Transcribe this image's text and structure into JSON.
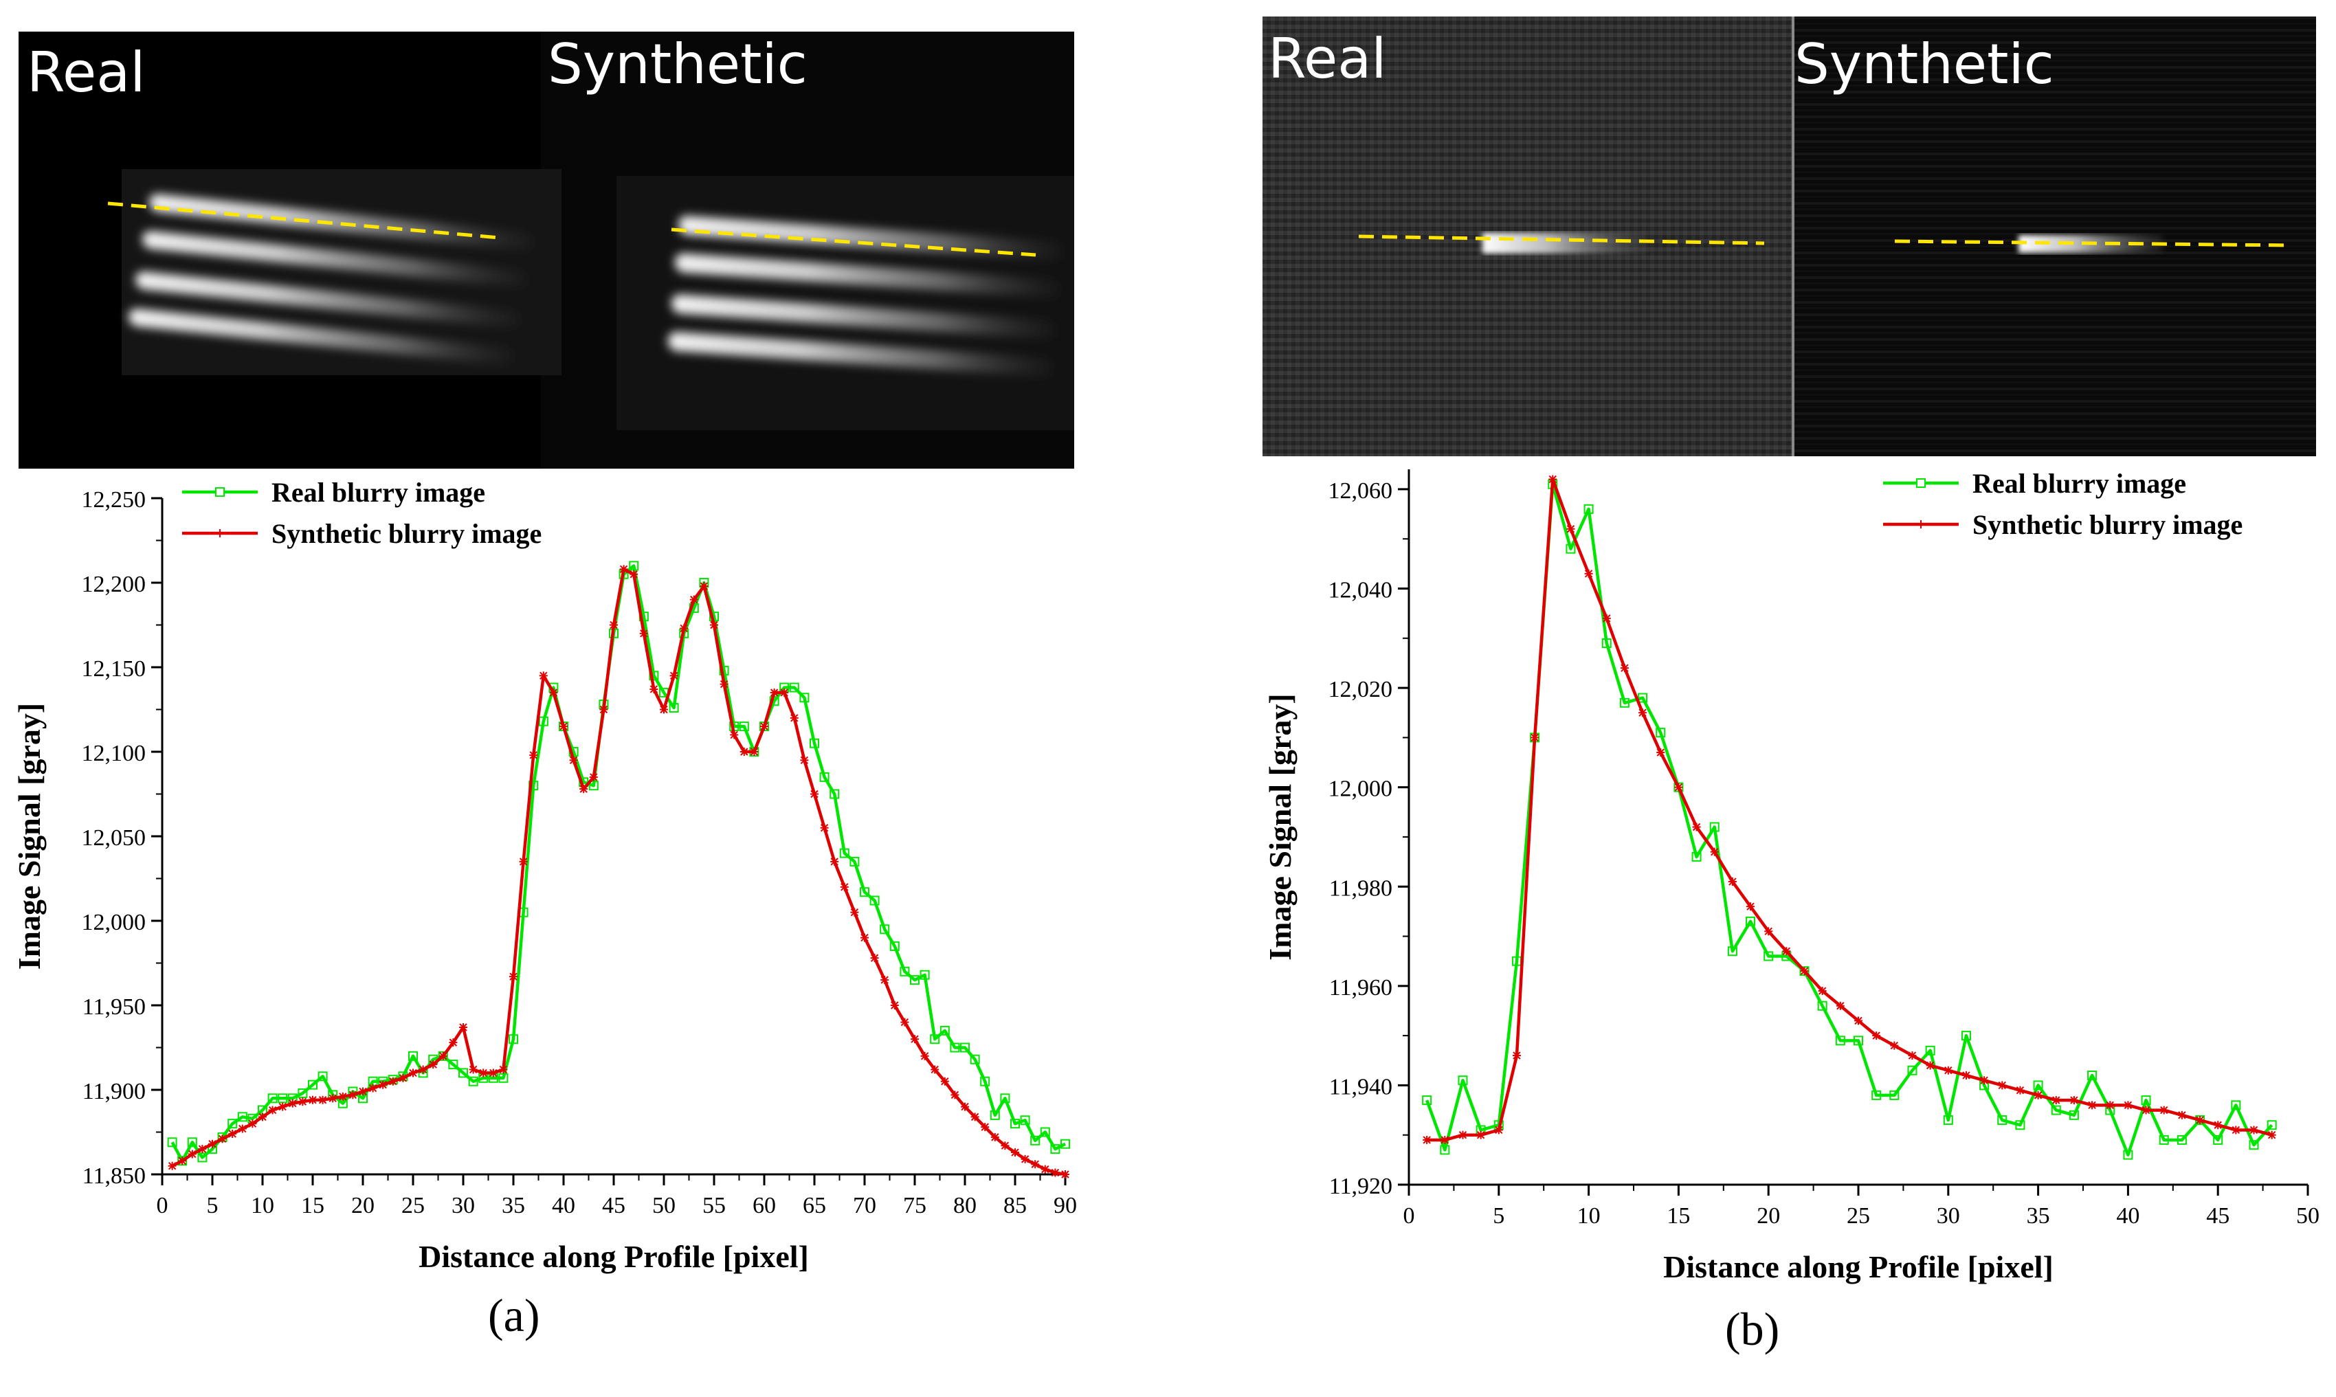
{
  "panels": [
    {
      "caption": "(a)",
      "image": {
        "left_label": "Real",
        "right_label": "Synthetic"
      },
      "chart_data": {
        "type": "line",
        "xlabel": "Distance along Profile [pixel]",
        "ylabel": "Image Signal [gray]",
        "xlim": [
          0,
          90
        ],
        "ylim": [
          11850,
          12250
        ],
        "xticks": [
          0,
          5,
          10,
          15,
          20,
          25,
          30,
          35,
          40,
          45,
          50,
          55,
          60,
          65,
          70,
          75,
          80,
          85,
          90
        ],
        "yticks": [
          11850,
          11900,
          11950,
          12000,
          12050,
          12100,
          12150,
          12200,
          12250
        ],
        "legend": "top-left",
        "grid": false,
        "series": [
          {
            "name": "Real blurry image",
            "color": "#00e600",
            "marker": "square",
            "x": [
              1,
              2,
              3,
              4,
              5,
              6,
              7,
              8,
              9,
              10,
              11,
              12,
              13,
              14,
              15,
              16,
              17,
              18,
              19,
              20,
              21,
              22,
              23,
              24,
              25,
              26,
              27,
              28,
              29,
              30,
              31,
              32,
              33,
              34,
              35,
              36,
              37,
              38,
              39,
              40,
              41,
              42,
              43,
              44,
              45,
              46,
              47,
              48,
              49,
              50,
              51,
              52,
              53,
              54,
              55,
              56,
              57,
              58,
              59,
              60,
              61,
              62,
              63,
              64,
              65,
              66,
              67,
              68,
              69,
              70,
              71,
              72,
              73,
              74,
              75,
              76,
              77,
              78,
              79,
              80,
              81,
              82,
              83,
              84,
              85,
              86,
              87,
              88,
              89,
              90
            ],
            "y": [
              11869,
              11858,
              11869,
              11860,
              11865,
              11872,
              11880,
              11884,
              11883,
              11888,
              11895,
              11895,
              11895,
              11898,
              11903,
              11908,
              11897,
              11892,
              11899,
              11895,
              11905,
              11905,
              11906,
              11908,
              11920,
              11910,
              11918,
              11920,
              11915,
              11910,
              11905,
              11907,
              11907,
              11907,
              11930,
              12005,
              12080,
              12118,
              12138,
              12115,
              12100,
              12082,
              12080,
              12128,
              12170,
              12205,
              12210,
              12180,
              12145,
              12135,
              12126,
              12170,
              12185,
              12200,
              12180,
              12148,
              12115,
              12115,
              12100,
              12115,
              12130,
              12138,
              12138,
              12132,
              12105,
              12085,
              12075,
              12040,
              12035,
              12017,
              12012,
              11995,
              11985,
              11970,
              11965,
              11968,
              11930,
              11935,
              11925,
              11925,
              11918,
              11905,
              11885,
              11895,
              11880,
              11882,
              11870,
              11875,
              11865,
              11868
            ]
          },
          {
            "name": "Synthetic blurry image",
            "color": "#e00000",
            "marker": "asterisk",
            "x": [
              1,
              2,
              3,
              4,
              5,
              6,
              7,
              8,
              9,
              10,
              11,
              12,
              13,
              14,
              15,
              16,
              17,
              18,
              19,
              20,
              21,
              22,
              23,
              24,
              25,
              26,
              27,
              28,
              29,
              30,
              31,
              32,
              33,
              34,
              35,
              36,
              37,
              38,
              39,
              40,
              41,
              42,
              43,
              44,
              45,
              46,
              47,
              48,
              49,
              50,
              51,
              52,
              53,
              54,
              55,
              56,
              57,
              58,
              59,
              60,
              61,
              62,
              63,
              64,
              65,
              66,
              67,
              68,
              69,
              70,
              71,
              72,
              73,
              74,
              75,
              76,
              77,
              78,
              79,
              80,
              81,
              82,
              83,
              84,
              85,
              86,
              87,
              88,
              89,
              90
            ],
            "y": [
              11855,
              11858,
              11862,
              11865,
              11868,
              11871,
              11874,
              11877,
              11880,
              11884,
              11888,
              11890,
              11892,
              11893,
              11894,
              11894,
              11895,
              11896,
              11897,
              11899,
              11901,
              11903,
              11905,
              11907,
              11910,
              11912,
              11915,
              11920,
              11928,
              11937,
              11912,
              11910,
              11910,
              11912,
              11967,
              12035,
              12098,
              12145,
              12135,
              12115,
              12095,
              12078,
              12085,
              12125,
              12175,
              12208,
              12205,
              12170,
              12137,
              12125,
              12145,
              12173,
              12190,
              12198,
              12175,
              12140,
              12110,
              12100,
              12100,
              12115,
              12135,
              12135,
              12120,
              12095,
              12075,
              12055,
              12035,
              12020,
              12005,
              11990,
              11978,
              11965,
              11950,
              11940,
              11930,
              11920,
              11912,
              11905,
              11897,
              11890,
              11884,
              11878,
              11872,
              11867,
              11863,
              11859,
              11856,
              11853,
              11851,
              11850
            ]
          }
        ]
      }
    },
    {
      "caption": "(b)",
      "image": {
        "left_label": "Real",
        "right_label": "Synthetic"
      },
      "chart_data": {
        "type": "line",
        "xlabel": "Distance along Profile [pixel]",
        "ylabel": "Image Signal [gray]",
        "xlim": [
          0,
          50
        ],
        "ylim": [
          11920,
          12064
        ],
        "xticks": [
          0,
          5,
          10,
          15,
          20,
          25,
          30,
          35,
          40,
          45,
          50
        ],
        "yticks": [
          11920,
          11940,
          11960,
          11980,
          12000,
          12020,
          12040,
          12060
        ],
        "legend": "top-right",
        "grid": false,
        "series": [
          {
            "name": "Real blurry image",
            "color": "#00e600",
            "marker": "square",
            "x": [
              1,
              2,
              3,
              4,
              5,
              6,
              7,
              8,
              9,
              10,
              11,
              12,
              13,
              14,
              15,
              16,
              17,
              18,
              19,
              20,
              21,
              22,
              23,
              24,
              25,
              26,
              27,
              28,
              29,
              30,
              31,
              32,
              33,
              34,
              35,
              36,
              37,
              38,
              39,
              40,
              41,
              42,
              43,
              44,
              45,
              46,
              47,
              48
            ],
            "y": [
              11937,
              11927,
              11941,
              11931,
              11932,
              11965,
              12010,
              12061,
              12048,
              12056,
              12029,
              12017,
              12018,
              12011,
              12000,
              11986,
              11992,
              11967,
              11973,
              11966,
              11966,
              11963,
              11956,
              11949,
              11949,
              11938,
              11938,
              11943,
              11947,
              11933,
              11950,
              11940,
              11933,
              11932,
              11940,
              11935,
              11934,
              11942,
              11935,
              11926,
              11937,
              11929,
              11929,
              11933,
              11929,
              11936,
              11928,
              11932
            ]
          },
          {
            "name": "Synthetic blurry image",
            "color": "#e00000",
            "marker": "asterisk",
            "x": [
              1,
              2,
              3,
              4,
              5,
              6,
              7,
              8,
              9,
              10,
              11,
              12,
              13,
              14,
              15,
              16,
              17,
              18,
              19,
              20,
              21,
              22,
              23,
              24,
              25,
              26,
              27,
              28,
              29,
              30,
              31,
              32,
              33,
              34,
              35,
              36,
              37,
              38,
              39,
              40,
              41,
              42,
              43,
              44,
              45,
              46,
              47,
              48
            ],
            "y": [
              11929,
              11929,
              11930,
              11930,
              11931,
              11946,
              12010,
              12062,
              12052,
              12043,
              12034,
              12024,
              12015,
              12007,
              12000,
              11992,
              11987,
              11981,
              11976,
              11971,
              11967,
              11963,
              11959,
              11956,
              11953,
              11950,
              11948,
              11946,
              11944,
              11943,
              11942,
              11941,
              11940,
              11939,
              11938,
              11937,
              11937,
              11936,
              11936,
              11936,
              11935,
              11935,
              11934,
              11933,
              11932,
              11931,
              11931,
              11930
            ]
          }
        ]
      }
    }
  ]
}
